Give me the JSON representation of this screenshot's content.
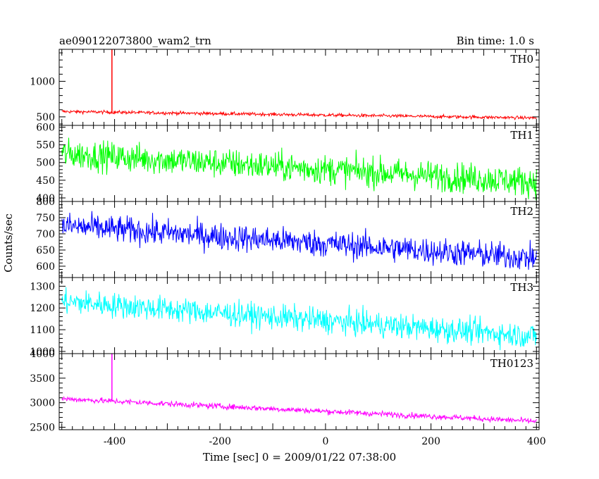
{
  "chart_data": {
    "type": "line",
    "title": "ae090122073800_wam2_trn",
    "bin_time_label": "Bin time: 1.0 s",
    "xlabel": "Time [sec] 0 = 2009/01/22 07:38:00",
    "ylabel": "Counts/sec",
    "xlim": [
      -505,
      405
    ],
    "x_ticks": [
      -400,
      -200,
      0,
      200,
      400
    ],
    "colors": {
      "TH0": "#ff0000",
      "TH1": "#00ff00",
      "TH2": "#0000ff",
      "TH3": "#00ffff",
      "TH0123": "#ff00ff"
    },
    "panels": [
      {
        "name": "TH0",
        "ylim": [
          380,
          1450
        ],
        "y_ticks": [
          500,
          1000
        ],
        "trend": {
          "start": 575,
          "end": 485
        },
        "noise": 22,
        "spike": {
          "x": -405,
          "y": 1450
        }
      },
      {
        "name": "TH1",
        "ylim": [
          390,
          605
        ],
        "y_ticks": [
          400,
          450,
          500,
          550,
          600
        ],
        "trend": {
          "start": 525,
          "end": 445
        },
        "noise": 40
      },
      {
        "name": "TH2",
        "ylim": [
          565,
          800
        ],
        "y_ticks": [
          600,
          650,
          700,
          750,
          800
        ],
        "trend": {
          "start": 725,
          "end": 625
        },
        "noise": 40
      },
      {
        "name": "TH3",
        "ylim": [
          990,
          1340
        ],
        "y_ticks": [
          1000,
          1100,
          1200,
          1300
        ],
        "trend": {
          "start": 1230,
          "end": 1070
        },
        "noise": 55
      },
      {
        "name": "TH0123",
        "ylim": [
          2450,
          4000
        ],
        "y_ticks": [
          2500,
          3000,
          3500,
          4000
        ],
        "trend": {
          "start": 3080,
          "end": 2620
        },
        "noise": 55,
        "spike": {
          "x": -405,
          "y": 4000
        }
      }
    ]
  }
}
